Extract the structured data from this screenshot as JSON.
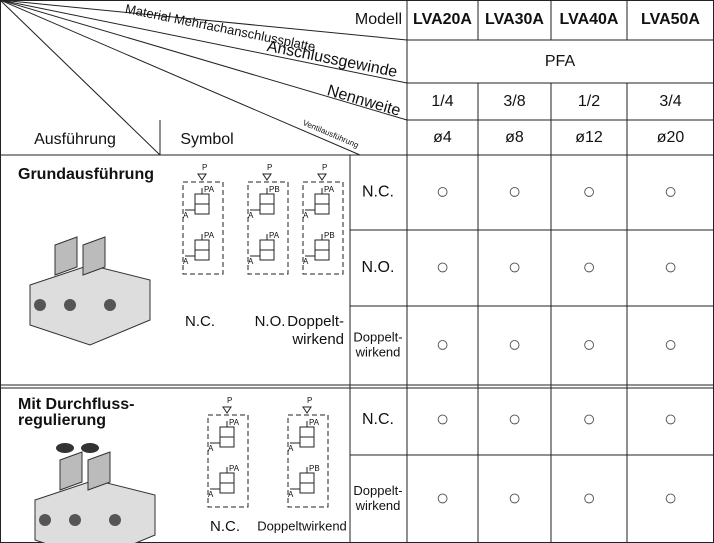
{
  "header": {
    "modell": "Modell",
    "material": "Material Mehrfachanschlussplatte",
    "anschluss": "Anschlussgewinde",
    "nennweite": "Nennweite",
    "ventil": "Ventilausführung",
    "ausfuehrung": "Ausführung",
    "symbol": "Symbol"
  },
  "models": [
    "LVA20A",
    "LVA30A",
    "LVA40A",
    "LVA50A"
  ],
  "material": "PFA",
  "threads": [
    "1/4",
    "3/8",
    "1/2",
    "3/4"
  ],
  "bores": [
    "ø4",
    "ø8",
    "ø12",
    "ø20"
  ],
  "symbol_labels": {
    "p": "P",
    "pa": "PA",
    "pb": "PB",
    "a": "A"
  },
  "sections": [
    {
      "title": [
        "Grundausführung"
      ],
      "captions": [
        "N.C.",
        "N.O.",
        "Doppelt-",
        "wirkend"
      ],
      "rows": [
        {
          "label": [
            "N.C."
          ],
          "cells": [
            "○",
            "○",
            "○",
            "○"
          ]
        },
        {
          "label": [
            "N.O."
          ],
          "cells": [
            "○",
            "○",
            "○",
            "○"
          ]
        },
        {
          "label": [
            "Doppelt-",
            "wirkend"
          ],
          "cells": [
            "○",
            "○",
            "○",
            "○"
          ]
        }
      ]
    },
    {
      "title": [
        "Mit Durchfluss-",
        "regulierung"
      ],
      "captions": [
        "N.C.",
        "Doppeltwirkend"
      ],
      "rows": [
        {
          "label": [
            "N.C."
          ],
          "cells": [
            "○",
            "○",
            "○",
            "○"
          ]
        },
        {
          "label": [
            "Doppelt-",
            "wirkend"
          ],
          "cells": [
            "○",
            "○",
            "○",
            "○"
          ]
        }
      ]
    }
  ]
}
